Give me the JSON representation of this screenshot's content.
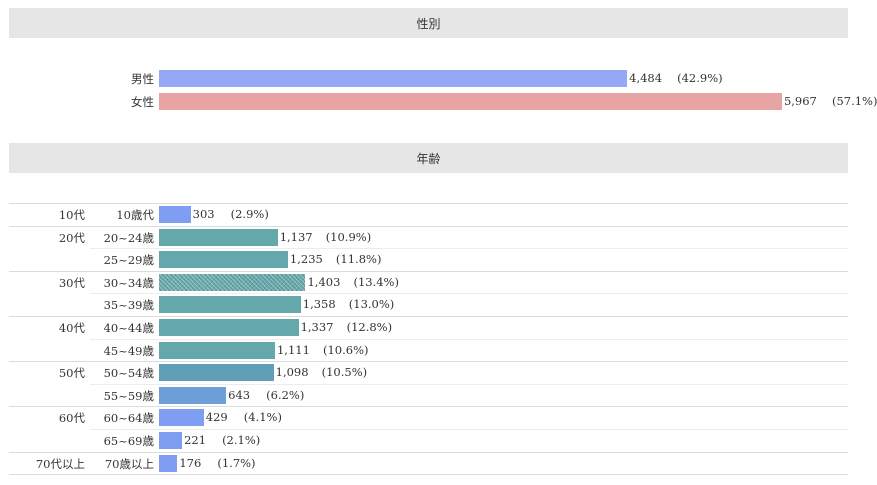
{
  "sections": {
    "gender_title": "性別",
    "age_title": "年齢"
  },
  "colors": {
    "male": "#94a8f5",
    "female": "#e8a3a3",
    "blue": "#7f9ef2",
    "teal": "#64a8ab",
    "steel": "#5f9fb8",
    "mid": "#6d9ed8"
  },
  "chart_data": [
    {
      "type": "bar",
      "orientation": "horizontal",
      "title": "性別",
      "categories": [
        "男性",
        "女性"
      ],
      "values": [
        4484,
        5967
      ],
      "value_labels": [
        "4,484",
        "5,967"
      ],
      "percent_labels": [
        "(42.9%)",
        "(57.1%)"
      ],
      "colors": [
        "#94a8f5",
        "#e8a3a3"
      ]
    },
    {
      "type": "bar",
      "orientation": "horizontal",
      "title": "年齢",
      "groups": [
        {
          "label": "10代",
          "rows": [
            0
          ]
        },
        {
          "label": "20代",
          "rows": [
            1,
            2
          ]
        },
        {
          "label": "30代",
          "rows": [
            3,
            4
          ]
        },
        {
          "label": "40代",
          "rows": [
            5,
            6
          ]
        },
        {
          "label": "50代",
          "rows": [
            7,
            8
          ]
        },
        {
          "label": "60代",
          "rows": [
            9,
            10
          ]
        },
        {
          "label": "70代以上",
          "rows": [
            11
          ]
        }
      ],
      "categories": [
        "10歳代",
        "20~24歳",
        "25~29歳",
        "30~34歳",
        "35~39歳",
        "40~44歳",
        "45~49歳",
        "50~54歳",
        "55~59歳",
        "60~64歳",
        "65~69歳",
        "70歳以上"
      ],
      "values": [
        303,
        1137,
        1235,
        1403,
        1358,
        1337,
        1111,
        1098,
        643,
        429,
        221,
        176
      ],
      "value_labels": [
        "303",
        "1,137",
        "1,235",
        "1,403",
        "1,358",
        "1,337",
        "1,111",
        "1,098",
        "643",
        "429",
        "221",
        "176"
      ],
      "percent_labels": [
        "(2.9%)",
        "(10.9%)",
        "(11.8%)",
        "(13.4%)",
        "(13.0%)",
        "(12.8%)",
        "(10.6%)",
        "(10.5%)",
        "(6.2%)",
        "(4.1%)",
        "(2.1%)",
        "(1.7%)"
      ],
      "colors": [
        "#7f9ef2",
        "#64a8ab",
        "#64a8ab",
        "#64a8ab",
        "#64a8ab",
        "#64a8ab",
        "#64a8ab",
        "#5f9fb8",
        "#6d9ed8",
        "#7f9ef2",
        "#7f9ef2",
        "#7f9ef2"
      ],
      "highlight": [
        false,
        false,
        false,
        true,
        false,
        false,
        false,
        false,
        false,
        false,
        false,
        false
      ]
    }
  ]
}
